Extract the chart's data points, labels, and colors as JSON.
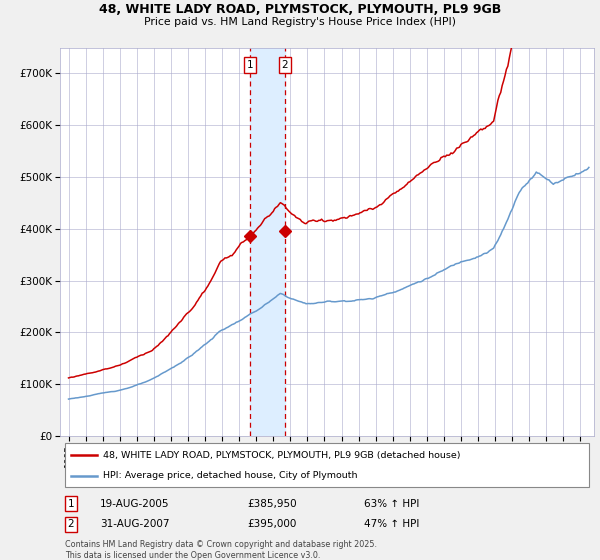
{
  "title_line1": "48, WHITE LADY ROAD, PLYMSTOCK, PLYMOUTH, PL9 9GB",
  "title_line2": "Price paid vs. HM Land Registry's House Price Index (HPI)",
  "legend_line1": "48, WHITE LADY ROAD, PLYMSTOCK, PLYMOUTH, PL9 9GB (detached house)",
  "legend_line2": "HPI: Average price, detached house, City of Plymouth",
  "sale1_date": "19-AUG-2005",
  "sale1_price": 385950,
  "sale1_label": "63% ↑ HPI",
  "sale2_date": "31-AUG-2007",
  "sale2_price": 395000,
  "sale2_label": "47% ↑ HPI",
  "sale1_x": 2005.632,
  "sale2_x": 2007.664,
  "ylabel_ticks": [
    "£0",
    "£100K",
    "£200K",
    "£300K",
    "£400K",
    "£500K",
    "£600K",
    "£700K"
  ],
  "ytick_vals": [
    0,
    100000,
    200000,
    300000,
    400000,
    500000,
    600000,
    700000
  ],
  "hpi_color": "#6699cc",
  "property_color": "#cc0000",
  "background_color": "#f0f0f0",
  "plot_bg_color": "#ffffff",
  "grid_color": "#aaaacc",
  "shade_color": "#ddeeff",
  "footer_text": "Contains HM Land Registry data © Crown copyright and database right 2025.\nThis data is licensed under the Open Government Licence v3.0.",
  "xlim_start": 1994.5,
  "xlim_end": 2025.8,
  "ylim_max": 750000
}
